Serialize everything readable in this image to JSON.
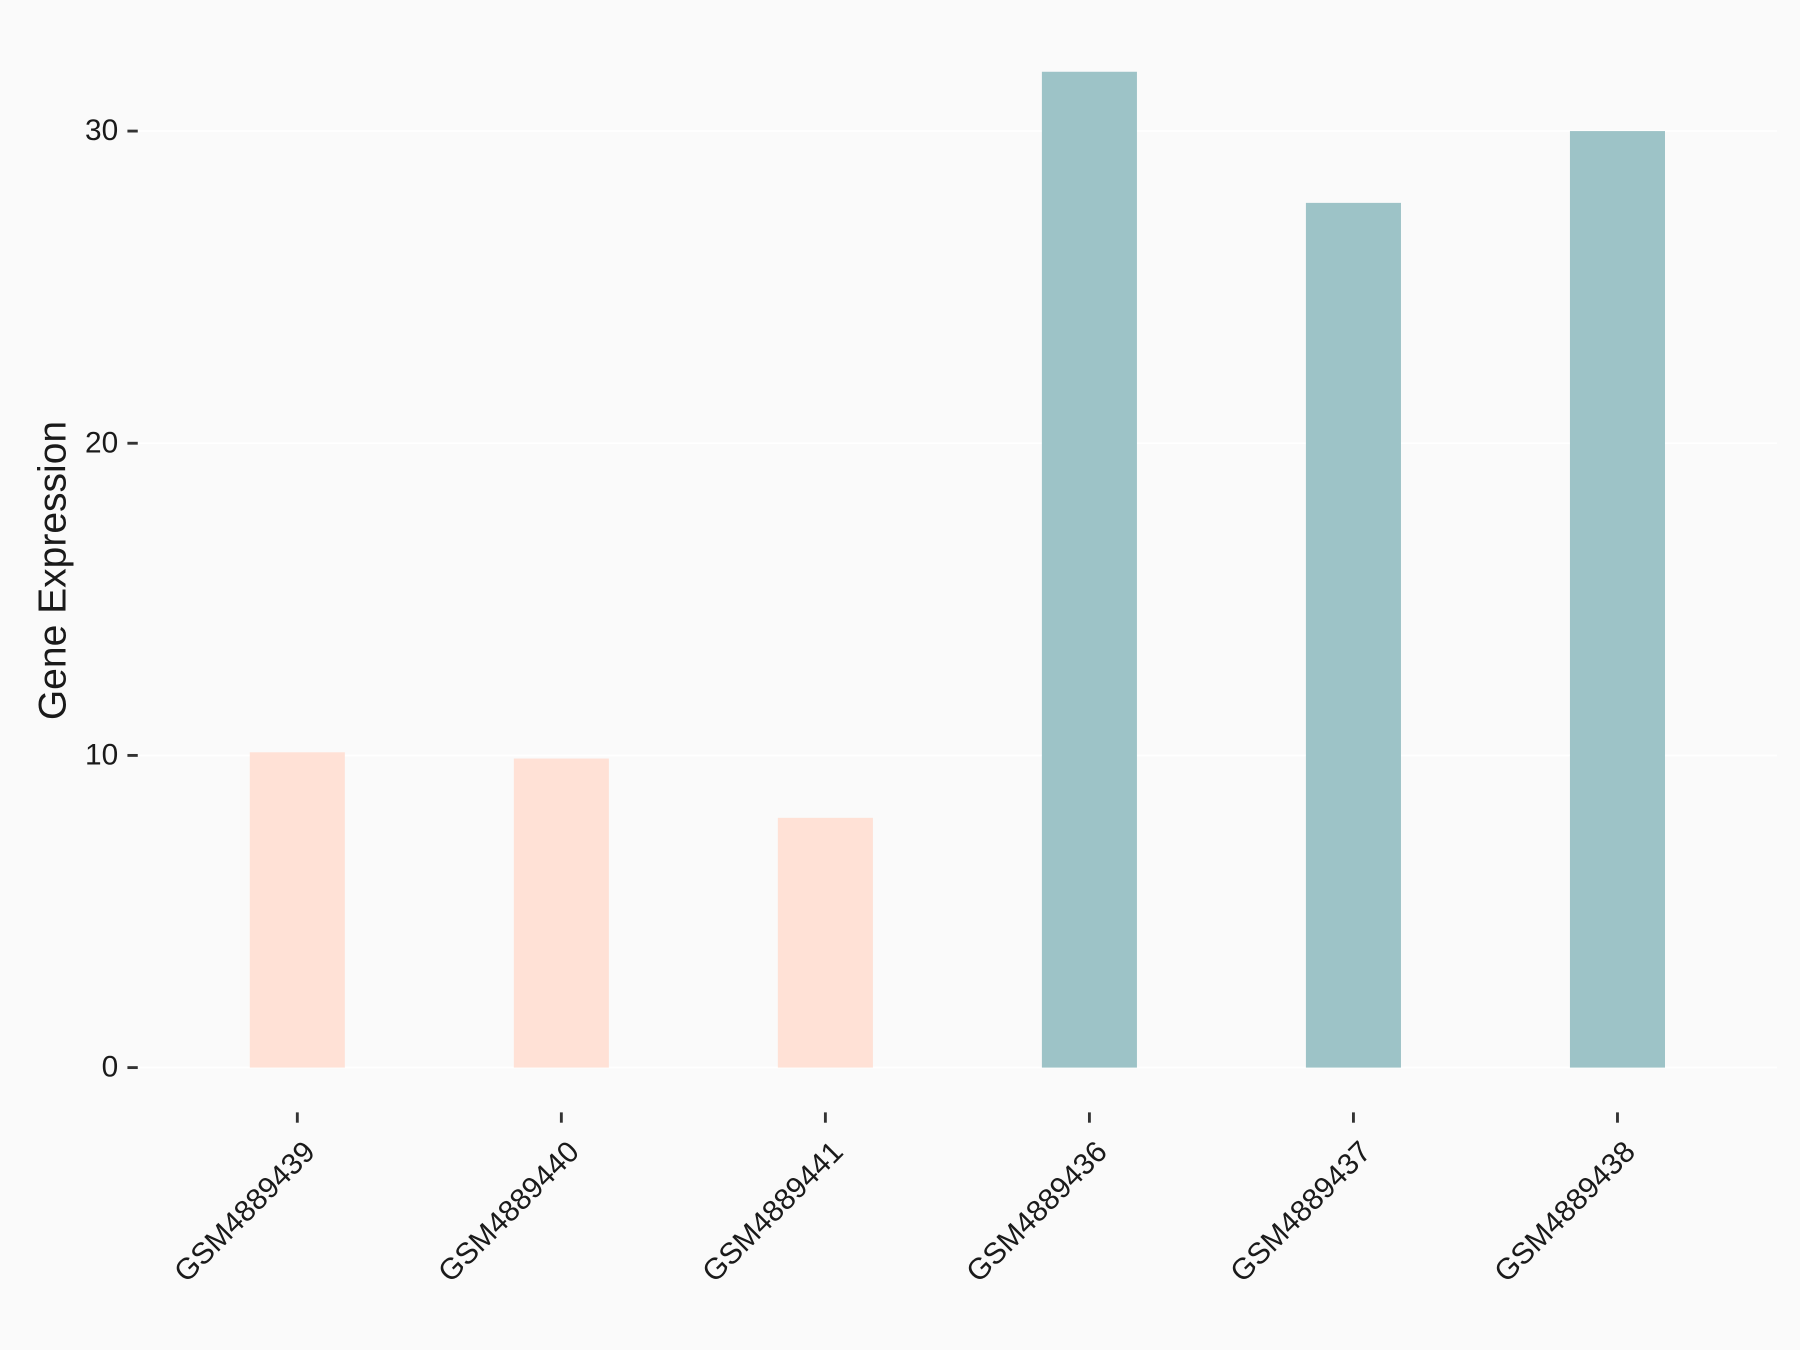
{
  "chart_data": {
    "type": "bar",
    "y_label": "Gene Expression",
    "categories": [
      "GSM4889439",
      "GSM4889440",
      "GSM4889441",
      "GSM4889436",
      "GSM4889437",
      "GSM4889438"
    ],
    "values": [
      10.1,
      9.9,
      8.0,
      31.9,
      27.7,
      30.0
    ],
    "colors": [
      "#ffe1d6",
      "#ffe1d6",
      "#ffe1d6",
      "#9dc3c7",
      "#9dc3c7",
      "#9dc3c7"
    ],
    "ylim": [
      -1.6,
      33.5
    ],
    "yticks": [
      0,
      10,
      20,
      30
    ],
    "grid": true
  }
}
